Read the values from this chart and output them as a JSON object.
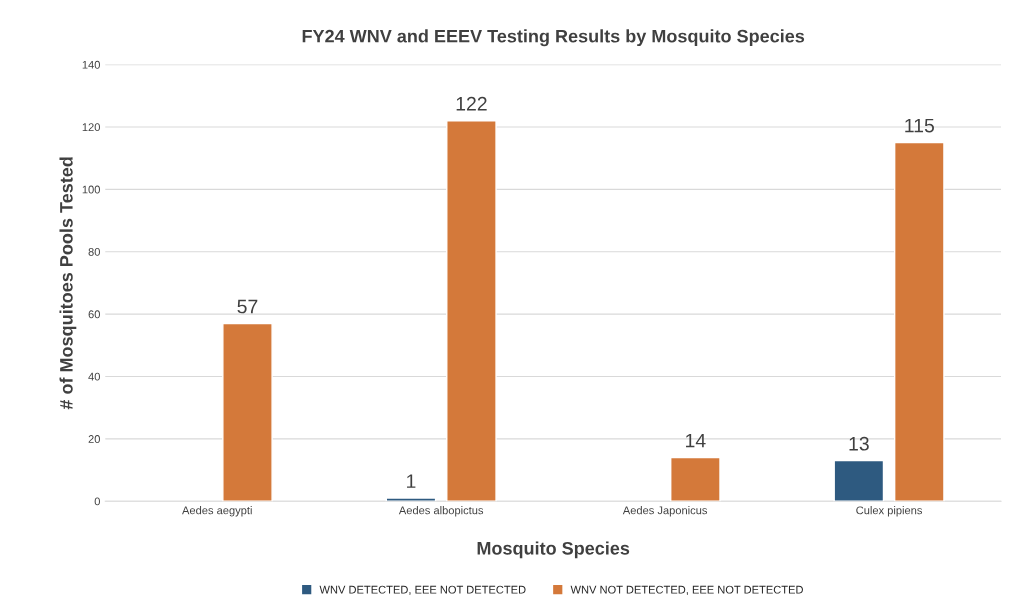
{
  "chart_data": {
    "type": "bar",
    "title": "FY24 WNV and EEEV Testing Results by Mosquito Species",
    "xlabel": "Mosquito Species",
    "ylabel": "# of Mosquitoes Pools Tested",
    "categories": [
      "Aedes aegypti",
      "Aedes albopictus",
      "Aedes Japonicus",
      "Culex pipiens"
    ],
    "series": [
      {
        "name": "WNV DETECTED, EEE NOT DETECTED",
        "color": "#2e5a80",
        "values": [
          null,
          1,
          null,
          13
        ]
      },
      {
        "name": "WNV NOT DETECTED, EEE NOT DETECTED",
        "color": "#d4793a",
        "values": [
          57,
          122,
          14,
          115
        ]
      }
    ],
    "ylim": [
      0,
      140
    ],
    "yticks": [
      0,
      20,
      40,
      60,
      80,
      100,
      120,
      140
    ],
    "grid": "y",
    "legend": "bottom",
    "data_labels": true
  }
}
